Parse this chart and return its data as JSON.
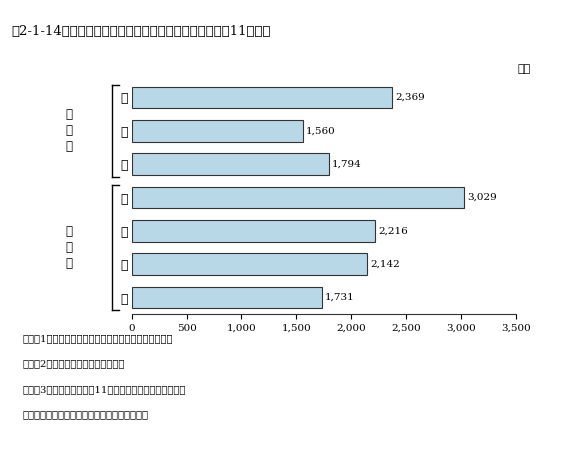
{
  "title": "第2-1-14図　大学等の研究者１人当たりの研究費（平成11年度）",
  "categories": [
    "国",
    "公",
    "私",
    "理",
    "工",
    "農",
    "保"
  ],
  "values": [
    2369,
    1560,
    1794,
    3029,
    2216,
    2142,
    1731
  ],
  "bar_color": "#b8d8e8",
  "bar_edge_color": "#333333",
  "xlim": [
    0,
    3500
  ],
  "xticks": [
    0,
    500,
    1000,
    1500,
    2000,
    2500,
    3000,
    3500
  ],
  "xtick_labels": [
    "0",
    "500",
    "1,000",
    "1,500",
    "2,000",
    "2,500",
    "3,000",
    "3,500"
  ],
  "group1_label": [
    "組",
    "織",
    "別"
  ],
  "group2_label": [
    "専",
    "門",
    "別"
  ],
  "unit_label": "（万",
  "note_lines": [
    "注）　1．研究本務者のうち、教員のみの数値である。",
    "　　　2．自然科学のみの値である。",
    "　　　3．研究者数は平成11年４月１日現在の値である。",
    "資料：総務省統計局「科学技術研究調査報告」"
  ],
  "background_color": "#ffffff"
}
